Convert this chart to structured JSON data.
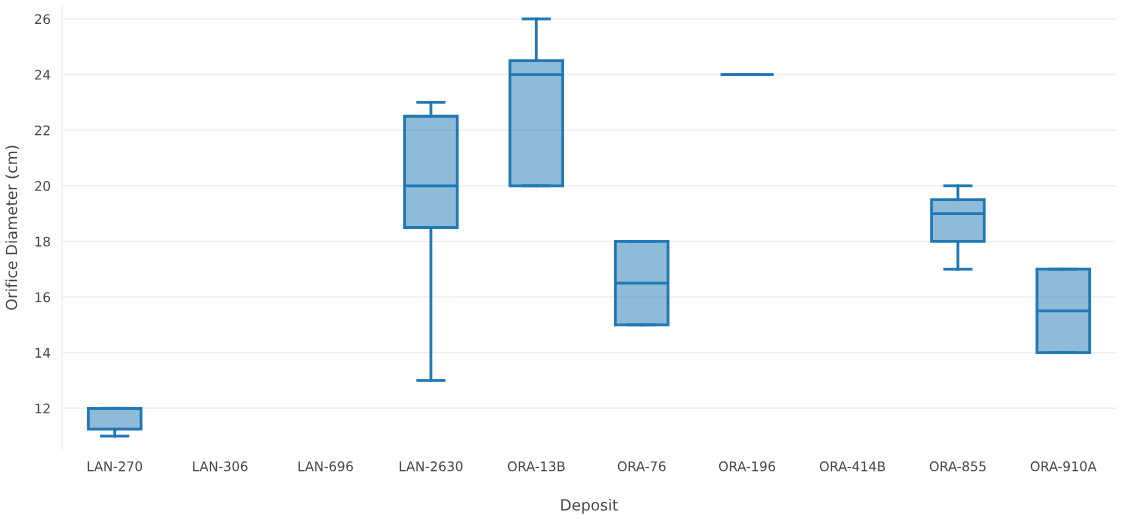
{
  "chart_data": {
    "type": "box",
    "xlabel": "Deposit",
    "ylabel": "Orifice Diameter (cm)",
    "categories": [
      "LAN-270",
      "LAN-306",
      "LAN-696",
      "LAN-2630",
      "ORA-13B",
      "ORA-76",
      "ORA-196",
      "ORA-414B",
      "ORA-855",
      "ORA-910A"
    ],
    "boxes": [
      {
        "low": 11,
        "q1": 11.25,
        "median": 12,
        "q3": 12,
        "high": 12
      },
      null,
      null,
      {
        "low": 13,
        "q1": 18.5,
        "median": 20,
        "q3": 22.5,
        "high": 23
      },
      {
        "low": 20,
        "q1": 20,
        "median": 24,
        "q3": 24.5,
        "high": 26
      },
      {
        "low": 15,
        "q1": 15,
        "median": 16.5,
        "q3": 18,
        "high": 18
      },
      {
        "low": 24,
        "q1": 24,
        "median": 24,
        "q3": 24,
        "high": 24
      },
      null,
      {
        "low": 17,
        "q1": 18,
        "median": 19,
        "q3": 19.5,
        "high": 20
      },
      {
        "low": 14,
        "q1": 14,
        "median": 15.5,
        "q3": 17,
        "high": 17
      }
    ],
    "color": "#1f77b4",
    "ylim": [
      10.5,
      26.5
    ],
    "yticks": [
      12,
      14,
      16,
      18,
      20,
      22,
      24,
      26
    ],
    "grid": "y"
  }
}
